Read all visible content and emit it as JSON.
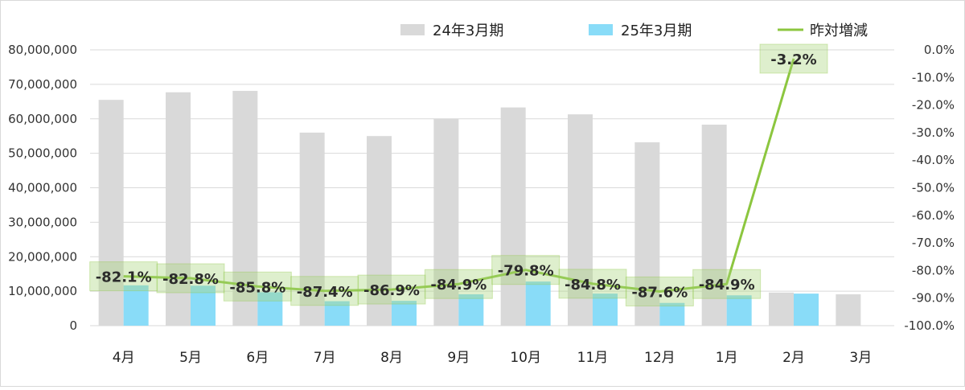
{
  "chart_data": {
    "type": "bar",
    "categories": [
      "4月",
      "5月",
      "6月",
      "7月",
      "8月",
      "9月",
      "10月",
      "11月",
      "12月",
      "1月",
      "2月",
      "3月"
    ],
    "series": [
      {
        "name": "24年3月期",
        "chart": "bar",
        "axis": "left",
        "color": "#d9d9d9",
        "values": [
          65500000,
          67700000,
          68100000,
          56000000,
          55000000,
          60000000,
          63300000,
          61300000,
          53200000,
          58300000,
          9600000,
          9100000
        ]
      },
      {
        "name": "25年3月期",
        "chart": "bar",
        "axis": "left",
        "color": "#89dcf8",
        "values": [
          11700000,
          11600000,
          9700000,
          7100000,
          7200000,
          9100000,
          12800000,
          9300000,
          6600000,
          8800000,
          9300000,
          null
        ]
      },
      {
        "name": "昨対増減",
        "chart": "line",
        "axis": "right",
        "color": "#8cc63f",
        "values": [
          -82.1,
          -82.8,
          -85.8,
          -87.4,
          -86.9,
          -84.9,
          -79.8,
          -84.8,
          -87.6,
          -84.9,
          -3.2,
          null
        ],
        "labels": [
          "-82.1%",
          "-82.8%",
          "-85.8%",
          "-87.4%",
          "-86.9%",
          "-84.9%",
          "-79.8%",
          "-84.8%",
          "-87.6%",
          "-84.9%",
          "-3.2%",
          ""
        ]
      }
    ],
    "y_left": {
      "ylim": [
        0,
        80000000
      ],
      "ticks": [
        0,
        10000000,
        20000000,
        30000000,
        40000000,
        50000000,
        60000000,
        70000000,
        80000000
      ],
      "tick_labels": [
        "0",
        "10,000,000",
        "20,000,000",
        "30,000,000",
        "40,000,000",
        "50,000,000",
        "60,000,000",
        "70,000,000",
        "80,000,000"
      ]
    },
    "y_right": {
      "ylim": [
        -100,
        0
      ],
      "ticks": [
        0,
        -10,
        -20,
        -30,
        -40,
        -50,
        -60,
        -70,
        -80,
        -90,
        -100
      ],
      "tick_labels": [
        "0.0%",
        "-10.0%",
        "-20.0%",
        "-30.0%",
        "-40.0%",
        "-50.0%",
        "-60.0%",
        "-70.0%",
        "-80.0%",
        "-90.0%",
        "-100.0%"
      ]
    },
    "grid": true,
    "legend_position": "top",
    "title": "",
    "xlabel": "",
    "ylabel": ""
  }
}
